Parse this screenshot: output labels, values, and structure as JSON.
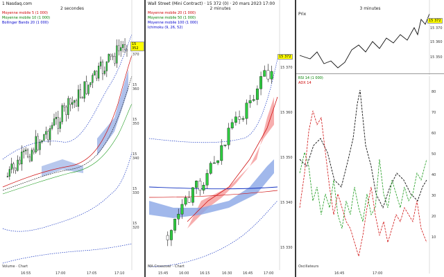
{
  "panes": {
    "left": {
      "header": "1 Nasdaq.com",
      "timeframe": "2 secondes",
      "legend": [
        "Moyenne mobile 5 (1 000)",
        "Moyenne mobile 10 (1 000)",
        "Bollinger Bands 20 (1 000)"
      ],
      "footer": "Volume · Chart",
      "y_labels": [
        "15 370",
        "15 360",
        "15 350",
        "15 340",
        "15 330",
        "15 320"
      ],
      "x_labels": [
        "16:55",
        "17:00",
        "17:05",
        "17:10"
      ],
      "price_tag": "15 352"
    },
    "middle": {
      "header": "Wall Street (Mini Contract) · 15 372 (0) · 20 mars 2023 17:00",
      "timeframe": "2 minutes",
      "legend": [
        "Moyenne mobile 20 (1 000)",
        "Moyenne mobile 50 (1 000)",
        "Moyenne mobile 100 (1 000)",
        "Ichimoku (9, 26, 52)"
      ],
      "footer": "MA Crossover · Chart",
      "y_labels": [
        "15 370",
        "15 360",
        "15 350",
        "15 340",
        "15 330"
      ],
      "x_labels": [
        "15:45",
        "16:00",
        "16:15",
        "16:30",
        "16:45",
        "17:00"
      ],
      "price_tag": "15 372"
    },
    "right": {
      "header": "Prix",
      "timeframe": "3 minutes",
      "legend": [
        "RSI 14 (1 000)",
        "ADX 14"
      ],
      "footer": "Oscillateurs",
      "y_labels": [
        "15 370",
        "15 360",
        "15 350"
      ],
      "x_labels": [
        "16:45",
        "17:00"
      ],
      "price_tag": "15 372",
      "osc_labels": [
        "80",
        "70",
        "60",
        "50",
        "40",
        "30",
        "20",
        "10"
      ]
    }
  },
  "colors": {
    "bull": "#2ecc40",
    "bear": "#e02020",
    "wick": "#111111",
    "band_blue": "#7a9ad8",
    "band_red": "#f07a7a",
    "ma_red": "#d01010",
    "ma_black": "#111111",
    "ma_green": "#1a9a1a",
    "ma_blue": "#1030c0",
    "divider": "#3a3a3a"
  },
  "icons": {
    "volume": "bar-chart-icon"
  }
}
